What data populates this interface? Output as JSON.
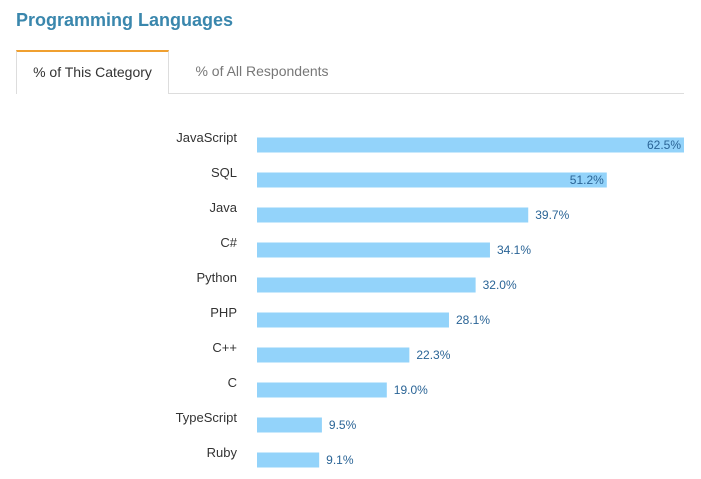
{
  "header": {
    "title": "Programming Languages"
  },
  "tabs": [
    {
      "label": "% of This Category",
      "active": true
    },
    {
      "label": "% of All Respondents",
      "active": false
    }
  ],
  "colors": {
    "bar": "#93d3fa",
    "value_text": "#2a6496",
    "title": "#3a87ad",
    "tab_accent": "#f0a030"
  },
  "chart_data": {
    "type": "bar",
    "orientation": "horizontal",
    "categories": [
      "JavaScript",
      "SQL",
      "Java",
      "C#",
      "Python",
      "PHP",
      "C++",
      "C",
      "TypeScript",
      "Ruby"
    ],
    "values": [
      62.5,
      51.2,
      39.7,
      34.1,
      32.0,
      28.1,
      22.3,
      19.0,
      9.5,
      9.1
    ],
    "value_labels": [
      "62.5%",
      "51.2%",
      "39.7%",
      "34.1%",
      "32.0%",
      "28.1%",
      "22.3%",
      "19.0%",
      "9.5%",
      "9.1%"
    ],
    "xlim": [
      0,
      62.5
    ],
    "grid": false,
    "legend": "none"
  }
}
